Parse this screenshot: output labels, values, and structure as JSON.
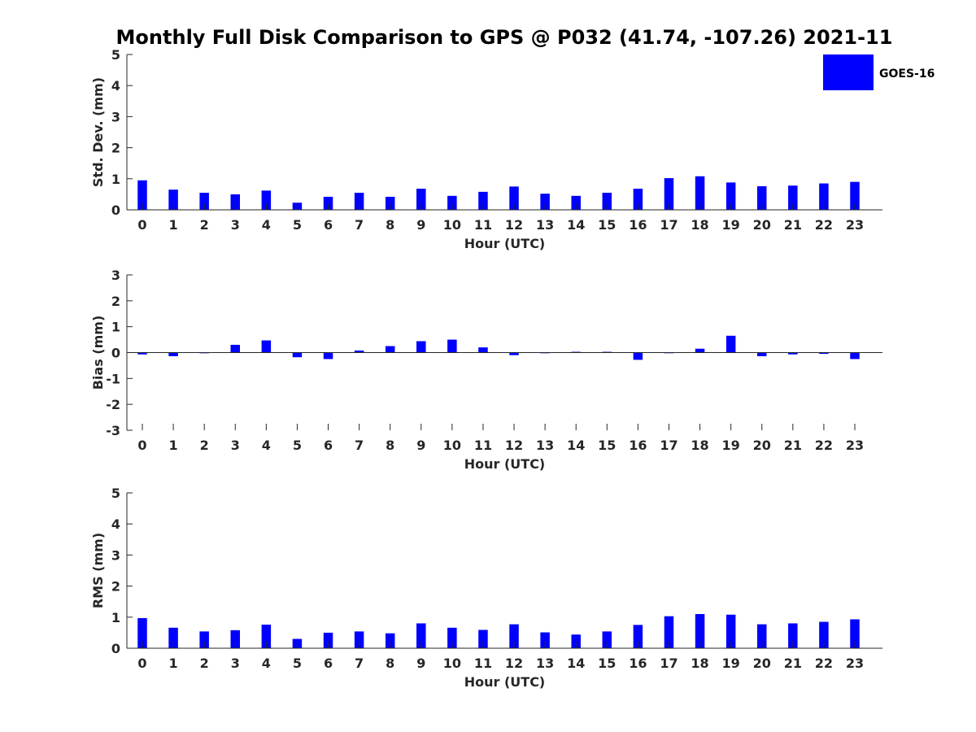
{
  "chart_data": {
    "type": "bar",
    "title": "Monthly Full Disk Comparison to GPS @ P032 (41.74, -107.26) 2021-11",
    "bar_color": "#0000ff",
    "legend": {
      "entries": [
        "GOES-16"
      ],
      "placement": "top-right"
    },
    "categories": [
      "0",
      "1",
      "2",
      "3",
      "4",
      "5",
      "6",
      "7",
      "8",
      "9",
      "10",
      "11",
      "12",
      "13",
      "14",
      "15",
      "16",
      "17",
      "18",
      "19",
      "20",
      "21",
      "22",
      "23"
    ],
    "panels": [
      {
        "id": "stddev",
        "ylabel": "Std. Dev. (mm)",
        "xlabel": "Hour (UTC)",
        "ylim": [
          0,
          5
        ],
        "yticks": [
          "0",
          "1",
          "2",
          "3",
          "4",
          "5"
        ],
        "series": [
          {
            "name": "GOES-16",
            "values": [
              0.95,
              0.65,
              0.55,
              0.5,
              0.62,
              0.23,
              0.42,
              0.55,
              0.42,
              0.68,
              0.45,
              0.58,
              0.75,
              0.52,
              0.45,
              0.55,
              0.68,
              1.02,
              1.08,
              0.88,
              0.76,
              0.78,
              0.85,
              0.9
            ]
          }
        ]
      },
      {
        "id": "bias",
        "ylabel": "Bias (mm)",
        "xlabel": "Hour (UTC)",
        "ylim": [
          -3,
          3
        ],
        "yticks": [
          "-3",
          "-2",
          "-1",
          "0",
          "1",
          "2",
          "3"
        ],
        "series": [
          {
            "name": "GOES-16",
            "values": [
              -0.07,
              -0.14,
              -0.02,
              0.3,
              0.47,
              -0.18,
              -0.25,
              0.08,
              0.25,
              0.44,
              0.5,
              0.2,
              -0.1,
              -0.02,
              0.03,
              0.03,
              -0.28,
              -0.02,
              0.15,
              0.65,
              -0.14,
              -0.07,
              -0.05,
              -0.25
            ]
          }
        ]
      },
      {
        "id": "rms",
        "ylabel": "RMS (mm)",
        "xlabel": "Hour (UTC)",
        "ylim": [
          0,
          5
        ],
        "yticks": [
          "0",
          "1",
          "2",
          "3",
          "4",
          "5"
        ],
        "series": [
          {
            "name": "GOES-16",
            "values": [
              0.97,
              0.66,
              0.54,
              0.58,
              0.76,
              0.3,
              0.5,
              0.54,
              0.48,
              0.8,
              0.66,
              0.59,
              0.77,
              0.51,
              0.44,
              0.54,
              0.75,
              1.03,
              1.1,
              1.08,
              0.77,
              0.8,
              0.85,
              0.93
            ]
          }
        ]
      }
    ]
  }
}
